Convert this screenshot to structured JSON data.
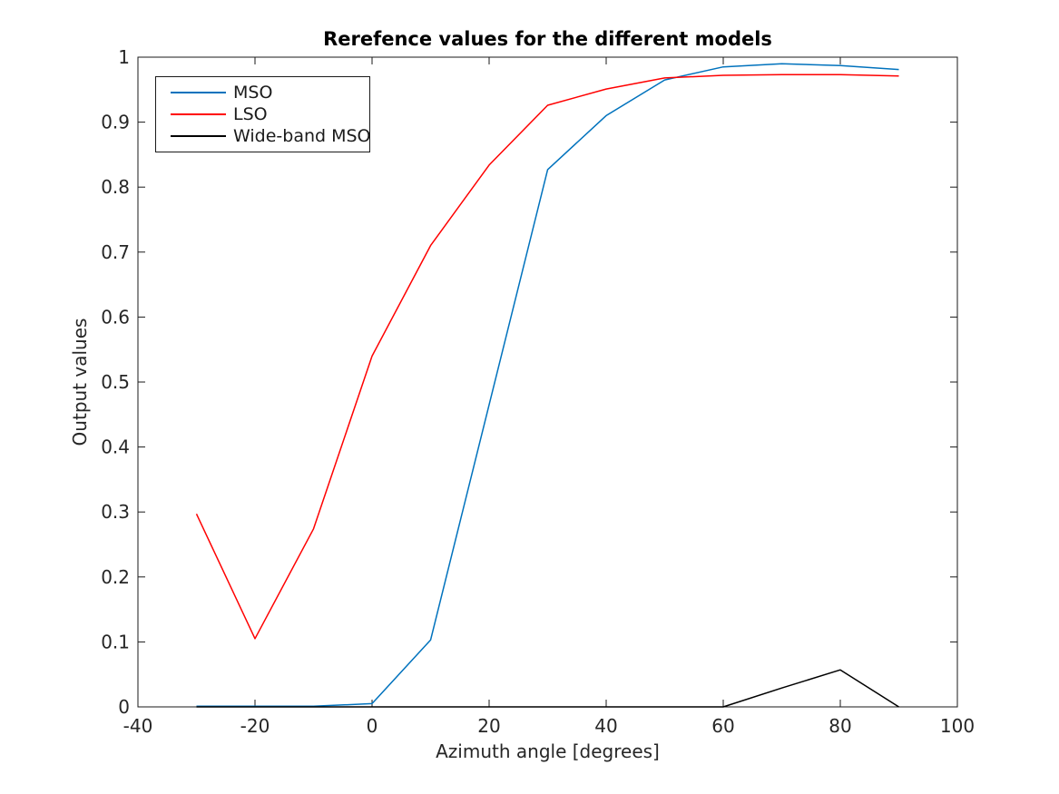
{
  "chart_data": {
    "type": "line",
    "title": "Rerefence values for the different models",
    "xlabel": "Azimuth angle [degrees]",
    "ylabel": "Output values",
    "xlim": [
      -40,
      100
    ],
    "ylim": [
      0,
      1
    ],
    "grid": false,
    "legend_position": "top-left",
    "axis_color": "#1a1a1a",
    "background_color": "#ffffff",
    "x_ticks": [
      -40,
      -20,
      0,
      20,
      40,
      60,
      80,
      100
    ],
    "x_tick_labels": [
      "-40",
      "-20",
      "0",
      "20",
      "40",
      "60",
      "80",
      "100"
    ],
    "y_ticks": [
      0,
      0.1,
      0.2,
      0.3,
      0.4,
      0.5,
      0.6,
      0.7,
      0.8,
      0.9,
      1
    ],
    "y_tick_labels": [
      "0",
      "0.1",
      "0.2",
      "0.3",
      "0.4",
      "0.5",
      "0.6",
      "0.7",
      "0.8",
      "0.9",
      "1"
    ],
    "x": [
      -30,
      -20,
      -10,
      0,
      10,
      20,
      30,
      40,
      50,
      60,
      70,
      80,
      90
    ],
    "series": [
      {
        "name": "MSO",
        "color": "#0072bd",
        "values": [
          0.001,
          0.001,
          0.001,
          0.005,
          0.103,
          0.465,
          0.827,
          0.91,
          0.965,
          0.985,
          0.99,
          0.987,
          0.981
        ]
      },
      {
        "name": "LSO",
        "color": "#ff0000",
        "values": [
          0.297,
          0.105,
          0.274,
          0.54,
          0.71,
          0.834,
          0.926,
          0.951,
          0.968,
          0.972,
          0.973,
          0.973,
          0.971
        ]
      },
      {
        "name": "Wide-band MSO",
        "color": "#000000",
        "values": [
          0,
          0,
          0,
          0,
          0,
          0,
          0,
          0,
          0,
          0,
          0.029,
          0.057,
          0
        ]
      }
    ]
  }
}
